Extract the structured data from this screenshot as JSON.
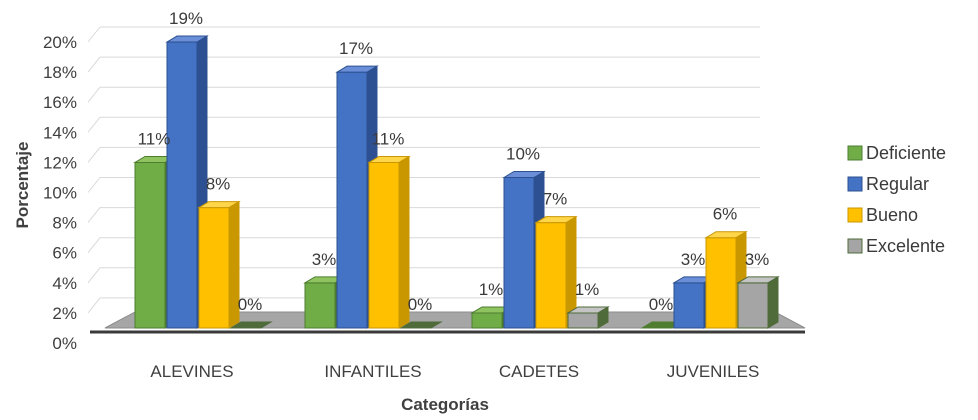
{
  "chart_data": {
    "type": "bar",
    "title": "",
    "xlabel": "Categorías",
    "ylabel": "Porcentaje",
    "ylim": [
      0,
      20
    ],
    "ytick_step": 2,
    "ytick_suffix": "%",
    "categories": [
      "ALEVINES",
      "INFANTILES",
      "CADETES",
      "JUVENILES"
    ],
    "series": [
      {
        "name": "Deficiente",
        "values": [
          11,
          3,
          1,
          0
        ],
        "labels": [
          "11%",
          "3%",
          "1%",
          "0%"
        ],
        "color": "#70ad47",
        "dark": "#4e7d30",
        "light": "#8fc35f"
      },
      {
        "name": "Regular",
        "values": [
          19,
          17,
          10,
          3
        ],
        "labels": [
          "19%",
          "17%",
          "10%",
          "3%"
        ],
        "color": "#4472c4",
        "dark": "#2c5091",
        "light": "#6a8fd8"
      },
      {
        "name": "Bueno",
        "values": [
          8,
          11,
          7,
          6
        ],
        "labels": [
          "8%",
          "11%",
          "7%",
          "6%"
        ],
        "color": "#ffc000",
        "dark": "#c99700",
        "light": "#ffd54a"
      },
      {
        "name": "Excelente",
        "values": [
          0,
          0,
          1,
          3
        ],
        "labels": [
          "0%",
          "0%",
          "1%",
          "3%"
        ],
        "color": "#a5a5a5",
        "dark": "#4f6b3a",
        "light": "#c4c4c4"
      }
    ],
    "grid": true,
    "legend_position": "right",
    "style": "3d-clustered-column"
  }
}
